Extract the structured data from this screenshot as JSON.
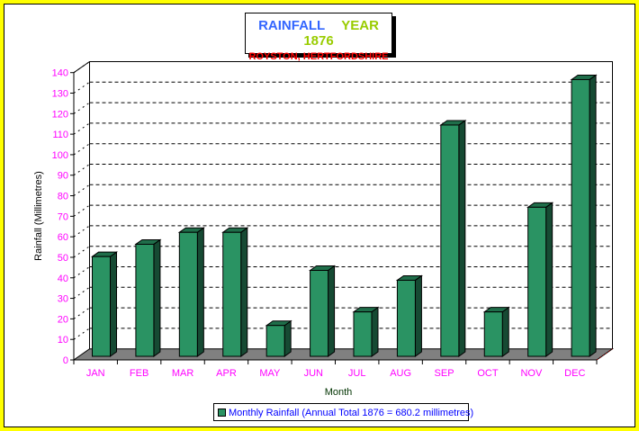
{
  "chart_data": {
    "type": "bar",
    "title": "RAINFALL",
    "title_year": "YEAR 1876",
    "subtitle": "ROYSTON, HERTFORDSHIRE",
    "xlabel": "Month",
    "ylabel": "Rainfall (Millimetres)",
    "categories": [
      "JAN",
      "FEB",
      "MAR",
      "APR",
      "MAY",
      "JUN",
      "JUL",
      "AUG",
      "SEP",
      "OCT",
      "NOV",
      "DEC"
    ],
    "series": [
      {
        "name": "Monthly Rainfall (Annual Total 1876 = 680.2 millimetres)",
        "values": [
          48.5,
          54.5,
          60.3,
          60.3,
          15.0,
          41.8,
          21.6,
          37.0,
          112.5,
          21.6,
          72.5,
          134.6
        ]
      }
    ],
    "ylim": [
      0,
      140
    ],
    "yticks": [
      0,
      10,
      20,
      30,
      40,
      50,
      60,
      70,
      80,
      90,
      100,
      110,
      120,
      130,
      140
    ],
    "grid": true,
    "legend_position": "bottom",
    "style": "3d",
    "colors": {
      "bar": "#2a9363",
      "bar_side": "#164a33",
      "bar_top": "#1f6e4a",
      "floor": "#808080",
      "tick_labels": "#ff00ff",
      "legend_text": "#0000ff",
      "title_blue": "#3366ff",
      "title_green": "#99cc00",
      "subtitle_red": "#ff0000",
      "border": "#ffff00",
      "axis_title": "#003300"
    }
  }
}
